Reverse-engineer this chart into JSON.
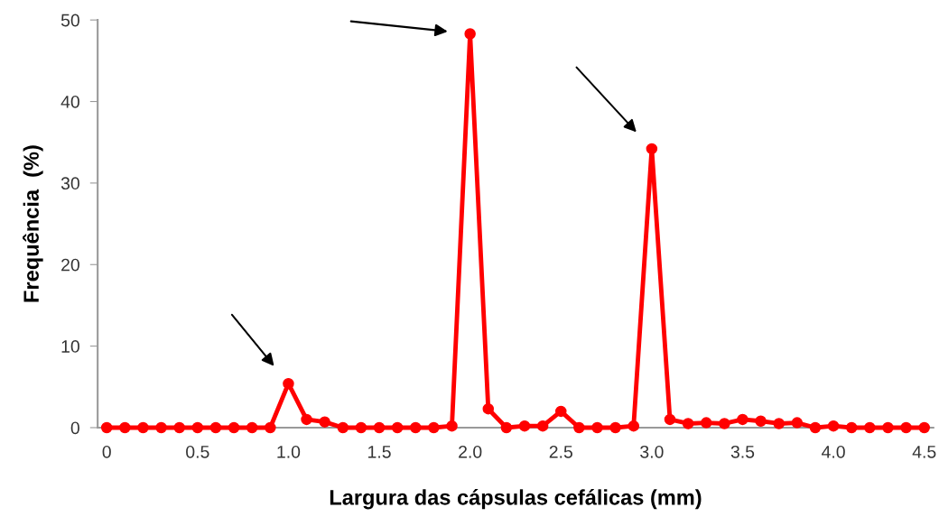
{
  "chart_data": {
    "type": "line",
    "xlabel": "Largura das cápsulas cefálicas (mm)",
    "ylabel": "Frequência  (%)",
    "x": [
      0,
      0.1,
      0.2,
      0.3,
      0.4,
      0.5,
      0.6,
      0.7,
      0.8,
      0.9,
      1.0,
      1.1,
      1.2,
      1.3,
      1.4,
      1.5,
      1.6,
      1.7,
      1.8,
      1.9,
      2.0,
      2.1,
      2.2,
      2.3,
      2.4,
      2.5,
      2.6,
      2.7,
      2.8,
      2.9,
      3.0,
      3.1,
      3.2,
      3.3,
      3.4,
      3.5,
      3.6,
      3.7,
      3.8,
      3.9,
      4.0,
      4.1,
      4.2,
      4.3,
      4.4,
      4.5
    ],
    "series": [
      {
        "color": "#ff0000",
        "values": [
          0,
          0,
          0,
          0,
          0,
          0,
          0,
          0,
          0,
          0,
          5.4,
          1.0,
          0.7,
          0,
          0,
          0,
          0,
          0,
          0,
          0.2,
          48.3,
          2.3,
          0,
          0.2,
          0.2,
          2.0,
          0,
          0,
          0,
          0.2,
          34.2,
          1.0,
          0.5,
          0.6,
          0.5,
          1.0,
          0.8,
          0.5,
          0.6,
          0,
          0.2,
          0,
          0,
          0,
          0,
          0
        ]
      }
    ],
    "xlim": [
      -0.05,
      4.55
    ],
    "ylim": [
      0,
      50
    ],
    "xticks": [
      0,
      0.5,
      {
        "value": 1.0,
        "label": "1.0"
      },
      1.5,
      {
        "value": 2.0,
        "label": "2.0"
      },
      2.5,
      {
        "value": 3.0,
        "label": "3.0"
      },
      3.5,
      {
        "value": 4.0,
        "label": "4.0"
      },
      4.5
    ],
    "yticks": [
      0,
      10,
      20,
      30,
      40,
      50
    ],
    "marker": "circle",
    "line_style": "solid",
    "grid": false,
    "legend": false
  }
}
